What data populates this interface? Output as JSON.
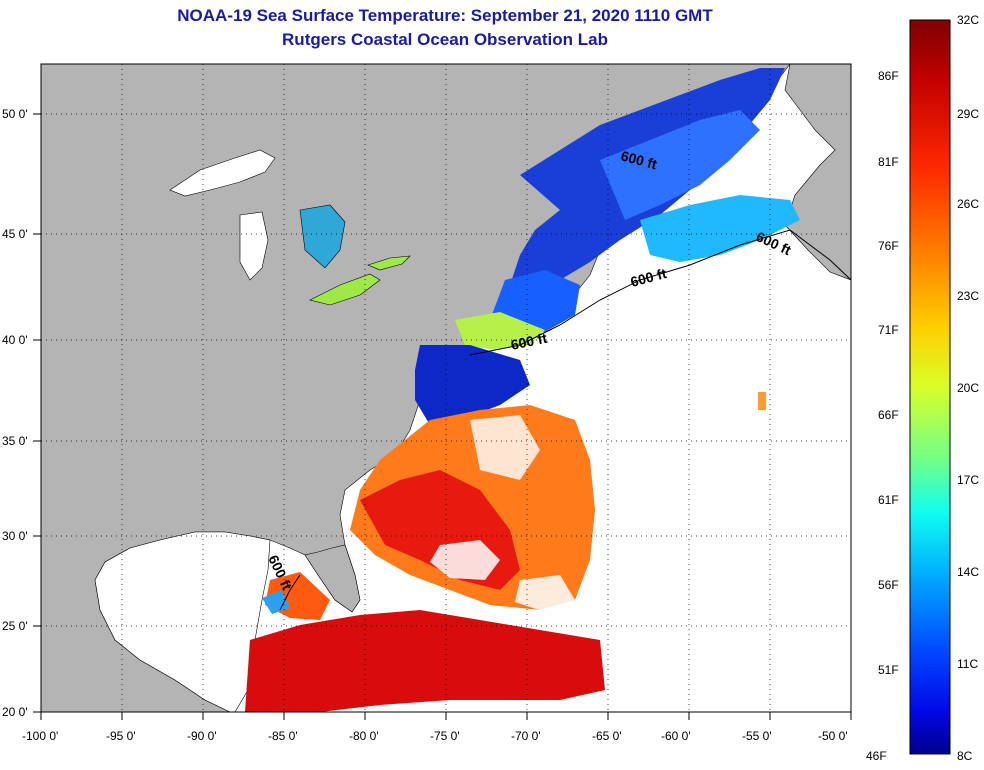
{
  "title": {
    "line1": "NOAA-19 Sea Surface Temperature:  September 21, 2020 1110 GMT",
    "line2": "Rutgers Coastal Ocean Observation Lab"
  },
  "map": {
    "lon_ticks": [
      "-100 0'",
      "-95 0'",
      "-90 0'",
      "-85 0'",
      "-80 0'",
      "-75 0'",
      "-70 0'",
      "-65 0'",
      "-60 0'",
      "-55 0'",
      "-50 0'"
    ],
    "lat_ticks": [
      "50 0'",
      "45 0'",
      "40 0'",
      "35 0'",
      "30 0'",
      "25 0'",
      "20 0'"
    ],
    "lon_range": [
      -100,
      -50
    ],
    "lat_range": [
      20,
      52.5
    ],
    "land_color": "#b4b4b4",
    "ocean_nodata_color": "#ffffff",
    "contour_label": "600 ft"
  },
  "colorbar": {
    "celsius": [
      "32C",
      "29C",
      "26C",
      "23C",
      "20C",
      "17C",
      "14C",
      "11C",
      "8C"
    ],
    "fahrenheit": [
      "86F",
      "81F",
      "76F",
      "71F",
      "66F",
      "61F",
      "56F",
      "51F",
      "46F"
    ],
    "colors": [
      "#7f0000",
      "#d40000",
      "#ff3a00",
      "#ff8a00",
      "#ffd400",
      "#e0ff20",
      "#7fff7f",
      "#20ffe0",
      "#00b4ff",
      "#0060ff",
      "#0010ff",
      "#00008f"
    ]
  }
}
